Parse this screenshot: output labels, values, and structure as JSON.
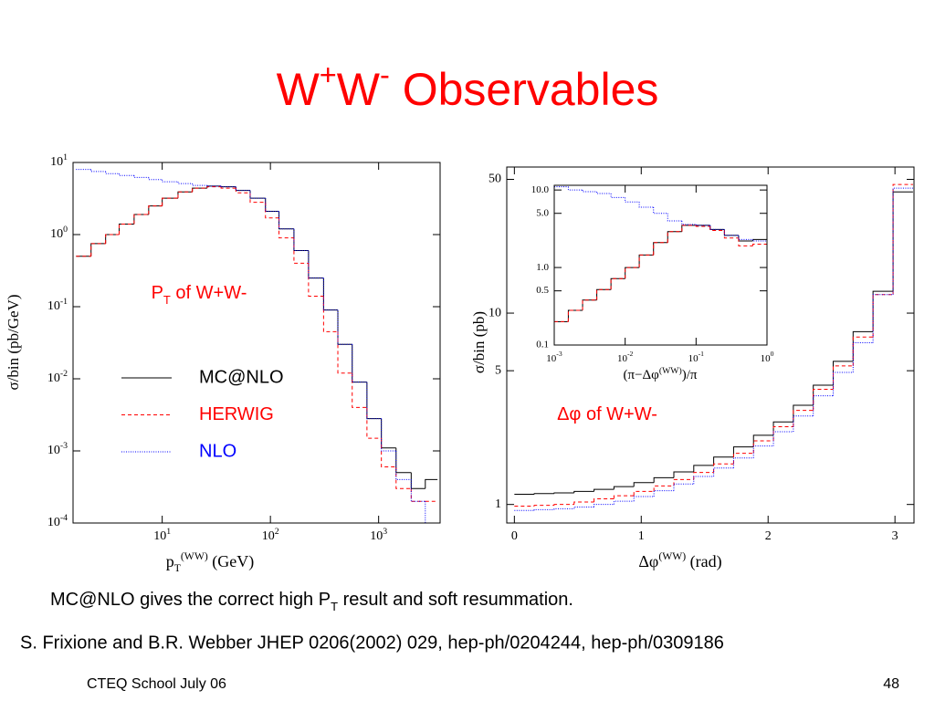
{
  "slide": {
    "title": [
      {
        "text": "W"
      },
      {
        "text": "+",
        "sup": true
      },
      {
        "text": "W"
      },
      {
        "text": "-",
        "sup": true
      },
      {
        "text": " Observables"
      }
    ],
    "caption": [
      {
        "text": "MC@NLO gives the correct high P"
      },
      {
        "text": "T",
        "sub": true
      },
      {
        "text": " result and soft resummation."
      }
    ],
    "citation": "S. Frixione and B.R. Webber JHEP 0206(2002) 029, hep-ph/0204244, hep-ph/0309186",
    "footer": "CTEQ School July 06",
    "page_number": 48
  },
  "chart_data": [
    {
      "type": "histogram",
      "log_x": true,
      "log_y": true,
      "legend": true,
      "xlim": [
        1.5,
        3700
      ],
      "ylim": [
        0.0001,
        10
      ],
      "xticks": [
        {
          "value": 10,
          "label": "10",
          "exponent": "1"
        },
        {
          "value": 100,
          "label": "10",
          "exponent": "2"
        },
        {
          "value": 1000,
          "label": "10",
          "exponent": "3"
        }
      ],
      "yticks": [
        {
          "value": 10,
          "label": "10",
          "exponent": "1"
        },
        {
          "value": 1,
          "label": "10",
          "exponent": "0"
        },
        {
          "value": 0.1,
          "label": "10",
          "exponent": "-1"
        },
        {
          "value": 0.01,
          "label": "10",
          "exponent": "-2"
        },
        {
          "value": 0.001,
          "label": "10",
          "exponent": "-3"
        },
        {
          "value": 0.0001,
          "label": "10",
          "exponent": "-4"
        }
      ],
      "xlabel": [
        {
          "text": "p"
        },
        {
          "text": "T",
          "sub": true
        },
        {
          "text": "(WW)",
          "sup": true
        },
        {
          "text": " (GeV)"
        }
      ],
      "ylabel": "σ/bin (pb/GeV)",
      "annotation": [
        {
          "text": "P"
        },
        {
          "text": "T",
          "sub": true
        },
        {
          "text": " of W+W-"
        }
      ],
      "annotation_color": "#ff0000",
      "bins": [
        1.6,
        2.2,
        3,
        4,
        5.5,
        7.5,
        10,
        14,
        19,
        26,
        35,
        48,
        65,
        90,
        120,
        165,
        225,
        310,
        420,
        570,
        780,
        1060,
        1450,
        2000,
        2700,
        3500
      ],
      "series": [
        {
          "name": "MC@NLO",
          "color": "#000000",
          "dash": "solid",
          "values": [
            0.5,
            0.75,
            1.0,
            1.4,
            1.9,
            2.5,
            3.2,
            3.9,
            4.4,
            4.7,
            4.6,
            4.1,
            3.2,
            2.1,
            1.2,
            0.6,
            0.25,
            0.09,
            0.03,
            0.009,
            0.0028,
            0.0011,
            0.0005,
            0.0003,
            0.0004
          ]
        },
        {
          "name": "HERWIG",
          "color": "#ff0000",
          "dash": "dashed",
          "values": [
            0.5,
            0.75,
            1.0,
            1.4,
            1.9,
            2.5,
            3.2,
            3.9,
            4.4,
            4.6,
            4.4,
            3.8,
            2.8,
            1.7,
            0.9,
            0.4,
            0.14,
            0.045,
            0.012,
            0.004,
            0.0015,
            0.0006,
            0.0003,
            0.0002,
            0.0002
          ]
        },
        {
          "name": "NLO",
          "color": "#0000ff",
          "dash": "dotted",
          "values": [
            8,
            7.5,
            7,
            6.6,
            6.2,
            5.8,
            5.4,
            5.1,
            4.8,
            4.7,
            4.6,
            4.1,
            3.2,
            2.1,
            1.2,
            0.6,
            0.25,
            0.09,
            0.03,
            0.009,
            0.0028,
            0.001,
            0.0004,
            0.0002,
            0.0001
          ]
        }
      ]
    },
    {
      "type": "histogram",
      "log_x": false,
      "log_y": true,
      "legend": false,
      "xlim": [
        -0.06,
        3.15
      ],
      "ylim": [
        0.8,
        58
      ],
      "xticks": [
        0,
        1,
        2,
        3
      ],
      "yticks": [
        1,
        5,
        10,
        50
      ],
      "xlabel": [
        {
          "text": "Δφ"
        },
        {
          "text": "(WW)",
          "sup": true
        },
        {
          "text": " (rad)"
        }
      ],
      "ylabel": "σ/bin (pb)",
      "annotation": [
        {
          "text": "Δφ of W+W-"
        }
      ],
      "annotation_color": "#ff0000",
      "bins": [
        0,
        0.157,
        0.314,
        0.471,
        0.628,
        0.785,
        0.942,
        1.1,
        1.257,
        1.414,
        1.571,
        1.728,
        1.885,
        2.042,
        2.199,
        2.356,
        2.513,
        2.67,
        2.827,
        2.985,
        3.142
      ],
      "series": [
        {
          "color": "#000000",
          "dash": "solid",
          "values": [
            1.13,
            1.14,
            1.15,
            1.17,
            1.2,
            1.24,
            1.3,
            1.38,
            1.48,
            1.6,
            1.77,
            2.0,
            2.3,
            2.7,
            3.3,
            4.2,
            5.6,
            8,
            13,
            43
          ]
        },
        {
          "color": "#ff0000",
          "dash": "dashed",
          "values": [
            0.98,
            0.99,
            1.0,
            1.03,
            1.07,
            1.11,
            1.17,
            1.25,
            1.35,
            1.47,
            1.63,
            1.85,
            2.15,
            2.55,
            3.1,
            4.0,
            5.3,
            7.5,
            12.5,
            47
          ]
        },
        {
          "color": "#0000ff",
          "dash": "dotted",
          "values": [
            0.93,
            0.94,
            0.95,
            0.97,
            1.0,
            1.04,
            1.1,
            1.18,
            1.28,
            1.4,
            1.55,
            1.75,
            2.02,
            2.4,
            2.9,
            3.7,
            4.9,
            7,
            12.5,
            45
          ]
        }
      ]
    },
    {
      "type": "histogram",
      "log_x": true,
      "log_y": true,
      "legend": false,
      "xlim": [
        0.001,
        1
      ],
      "ylim": [
        0.1,
        11.5
      ],
      "xticks": [
        {
          "value": 0.001,
          "label": "10",
          "exponent": "-3"
        },
        {
          "value": 0.01,
          "label": "10",
          "exponent": "-2"
        },
        {
          "value": 0.1,
          "label": "10",
          "exponent": "-1"
        },
        {
          "value": 1,
          "label": "10",
          "exponent": "0"
        }
      ],
      "yticks": [
        {
          "value": 10,
          "label": "10.0"
        },
        {
          "value": 5,
          "label": "5.0"
        },
        {
          "value": 1,
          "label": "1.0"
        },
        0.5,
        0.1
      ],
      "xlabel": [
        {
          "text": "(π−Δφ"
        },
        {
          "text": "(WW)",
          "sup": true
        },
        {
          "text": ")/π"
        }
      ],
      "bins": [
        0.001,
        0.00158,
        0.00251,
        0.00398,
        0.00631,
        0.01,
        0.0158,
        0.0251,
        0.0398,
        0.0631,
        0.1,
        0.158,
        0.251,
        0.398,
        0.631,
        1
      ],
      "series": [
        {
          "color": "#000000",
          "dash": "solid",
          "values": [
            0.2,
            0.28,
            0.38,
            0.52,
            0.72,
            1.0,
            1.45,
            2.1,
            2.9,
            3.5,
            3.5,
            3.1,
            2.6,
            2.2,
            2.3
          ]
        },
        {
          "color": "#ff0000",
          "dash": "dashed",
          "values": [
            0.2,
            0.28,
            0.38,
            0.52,
            0.72,
            1.0,
            1.45,
            2.1,
            2.9,
            3.5,
            3.4,
            3.0,
            2.4,
            1.9,
            2.0
          ]
        },
        {
          "color": "#0000ff",
          "dash": "dotted",
          "values": [
            11,
            10,
            9.5,
            9,
            8,
            7,
            6,
            5,
            4,
            3.6,
            3.5,
            3.1,
            2.6,
            2.3,
            2.2
          ]
        }
      ]
    }
  ]
}
